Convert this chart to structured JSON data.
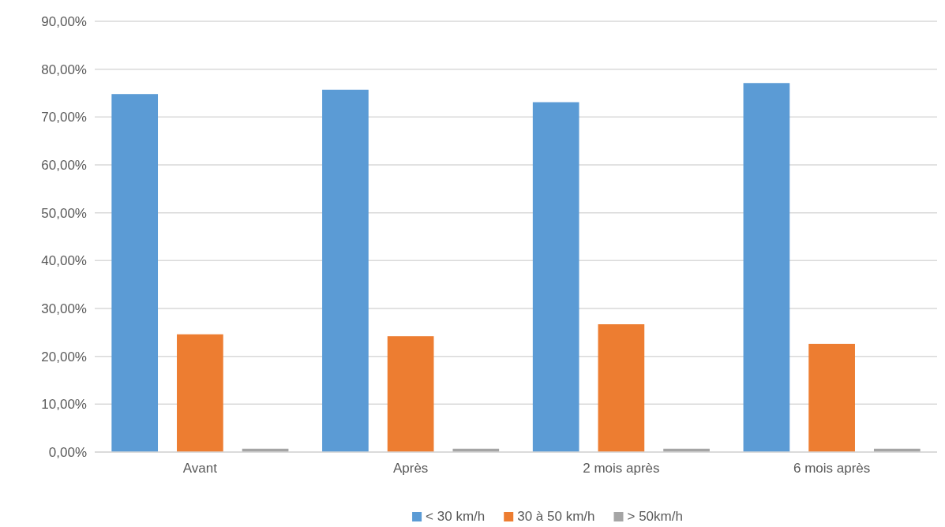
{
  "chart_data": {
    "type": "bar",
    "categories": [
      "Avant",
      "Après",
      "2 mois après",
      "6 mois après"
    ],
    "series": [
      {
        "name": "< 30 km/h",
        "color": "#5b9bd5",
        "values": [
          74.8,
          75.7,
          73.1,
          77.1
        ]
      },
      {
        "name": "30 à 50 km/h",
        "color": "#ed7d31",
        "values": [
          24.6,
          24.2,
          26.7,
          22.6
        ]
      },
      {
        "name": "> 50km/h",
        "color": "#a5a5a5",
        "values": [
          0.7,
          0.7,
          0.7,
          0.7
        ]
      }
    ],
    "ylim": [
      0,
      90
    ],
    "yticks": [
      {
        "value": 0,
        "label": "0,00%"
      },
      {
        "value": 10,
        "label": "10,00%"
      },
      {
        "value": 20,
        "label": "20,00%"
      },
      {
        "value": 30,
        "label": "30,00%"
      },
      {
        "value": 40,
        "label": "40,00%"
      },
      {
        "value": 50,
        "label": "50,00%"
      },
      {
        "value": 60,
        "label": "60,00%"
      },
      {
        "value": 70,
        "label": "70,00%"
      },
      {
        "value": 80,
        "label": "80,00%"
      },
      {
        "value": 90,
        "label": "90,00%"
      }
    ],
    "grid": "y",
    "legend": "bottom"
  }
}
